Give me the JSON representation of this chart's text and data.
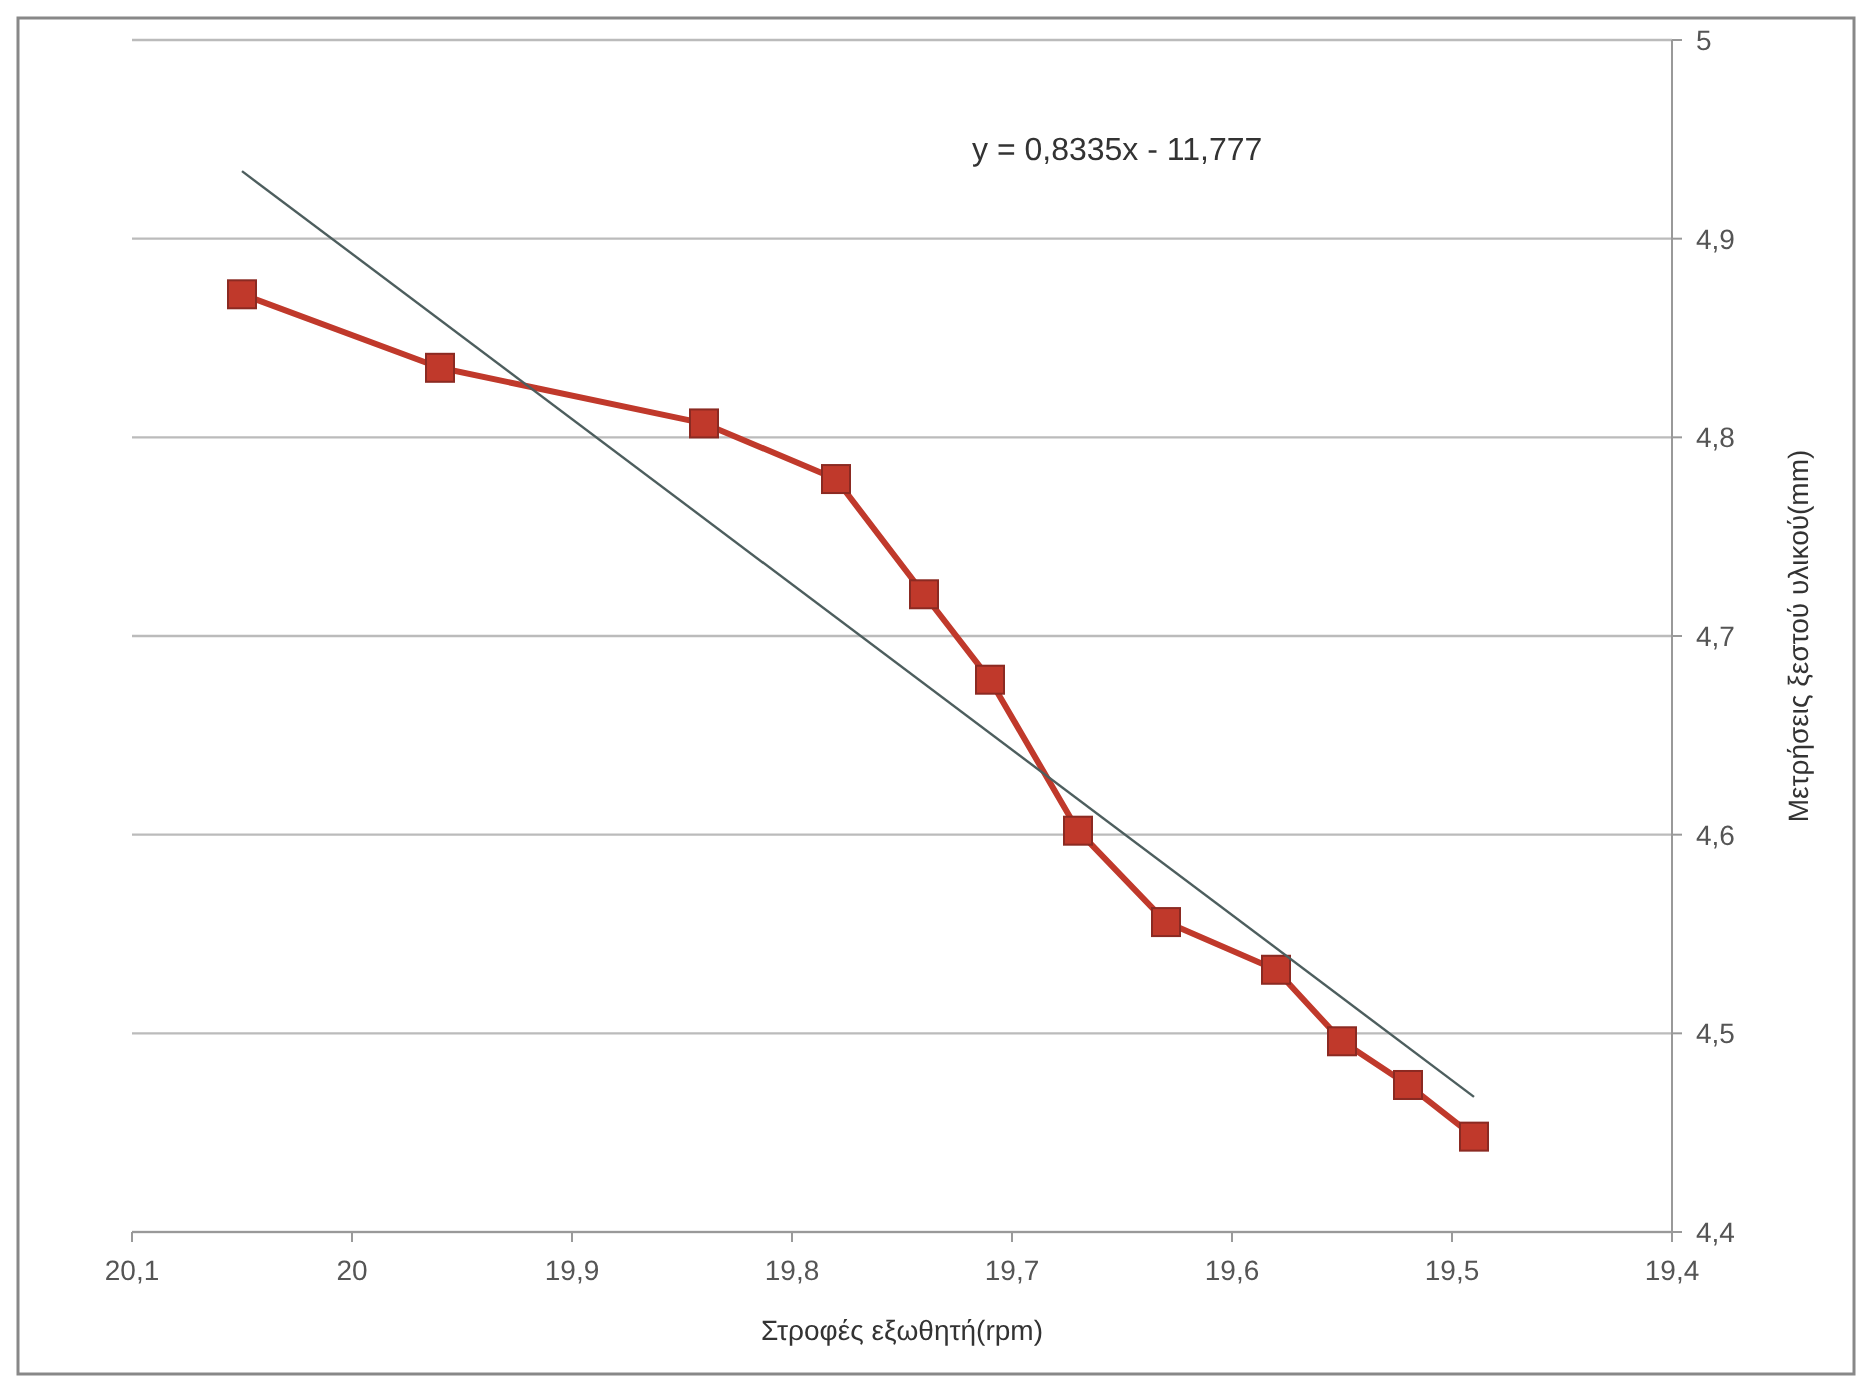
{
  "chart_data": {
    "type": "line",
    "xlabel": "Στροφές εξωθητή(rpm)",
    "ylabel": "Μετρήσεις ξεστού υλικού(mm)",
    "annotations": [
      "y = 0,8335x - 11,777"
    ],
    "xlim": [
      20.1,
      19.4
    ],
    "xticks": [
      {
        "value": 20.1,
        "label": "20,1"
      },
      20,
      {
        "value": 19.9,
        "label": "19,9"
      },
      {
        "value": 19.8,
        "label": "19,8"
      },
      {
        "value": 19.7,
        "label": "19,7"
      },
      {
        "value": 19.6,
        "label": "19,6"
      },
      {
        "value": 19.5,
        "label": "19,5"
      },
      {
        "value": 19.4,
        "label": "19,4"
      }
    ],
    "ylim": [
      4.4,
      5
    ],
    "yticks": [
      {
        "value": 4.4,
        "label": "4,4"
      },
      {
        "value": 4.5,
        "label": "4,5"
      },
      {
        "value": 4.6,
        "label": "4,6"
      },
      {
        "value": 4.7,
        "label": "4,7"
      },
      {
        "value": 4.8,
        "label": "4,8"
      },
      {
        "value": 4.9,
        "label": "4,9"
      },
      5
    ],
    "grid": "y",
    "line_style": "solid",
    "series": [
      {
        "color": "#c0392b",
        "marker": "square",
        "x": [
          20.05,
          19.96,
          19.84,
          19.78,
          19.74,
          19.71,
          19.67,
          19.63,
          19.58,
          19.55,
          19.52,
          19.49
        ],
        "values": [
          4.872,
          4.835,
          4.807,
          4.779,
          4.721,
          4.678,
          4.602,
          4.556,
          4.532,
          4.496,
          4.474,
          4.448
        ]
      },
      {
        "color": "#4d5e5e",
        "marker": "none",
        "x": [
          20.05,
          19.49
        ],
        "values": [
          4.934,
          4.468
        ]
      }
    ]
  }
}
